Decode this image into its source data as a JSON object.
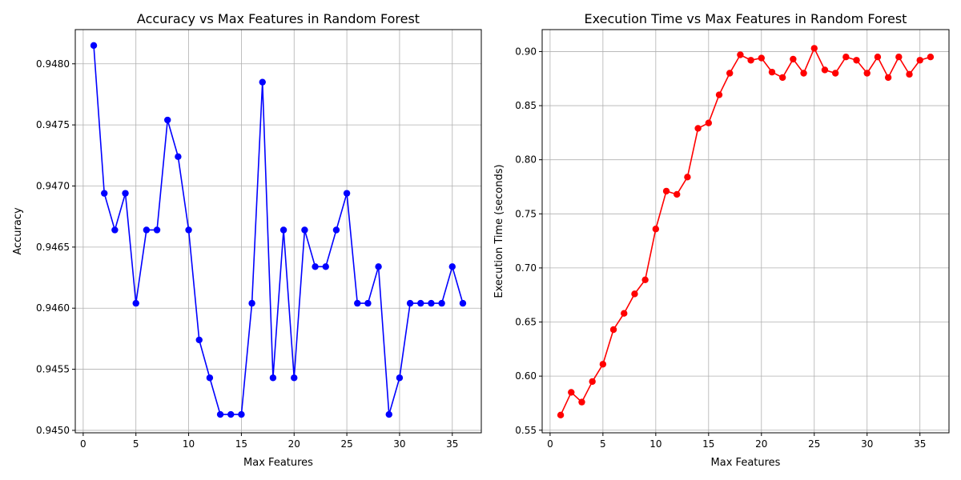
{
  "chart_data": [
    {
      "type": "line",
      "title": "Accuracy vs Max Features in Random Forest",
      "xlabel": "Max Features",
      "ylabel": "Accuracy",
      "xlim": [
        -0.75,
        37.75
      ],
      "ylim": [
        0.94498,
        0.94828
      ],
      "xticks": [
        0,
        5,
        10,
        15,
        20,
        25,
        30,
        35
      ],
      "yticks": [
        0.945,
        0.9455,
        0.946,
        0.9465,
        0.947,
        0.9475,
        0.948
      ],
      "ytick_labels": [
        "0.9450",
        "0.9455",
        "0.9460",
        "0.9465",
        "0.9470",
        "0.9475",
        "0.9480"
      ],
      "xtick_labels": [
        "0",
        "5",
        "10",
        "15",
        "20",
        "25",
        "30",
        "35"
      ],
      "grid": true,
      "color": "#0000ff",
      "marker": "circle",
      "x": [
        1,
        2,
        3,
        4,
        5,
        6,
        7,
        8,
        9,
        10,
        11,
        12,
        13,
        14,
        15,
        16,
        17,
        18,
        19,
        20,
        21,
        22,
        23,
        24,
        25,
        26,
        27,
        28,
        29,
        30,
        31,
        32,
        33,
        34,
        35,
        36
      ],
      "y": [
        0.94815,
        0.94694,
        0.94664,
        0.94694,
        0.94604,
        0.94664,
        0.94664,
        0.94754,
        0.94724,
        0.94664,
        0.94574,
        0.94543,
        0.94513,
        0.94513,
        0.94513,
        0.94604,
        0.94785,
        0.94543,
        0.94664,
        0.94543,
        0.94664,
        0.94634,
        0.94634,
        0.94664,
        0.94694,
        0.94604,
        0.94604,
        0.94634,
        0.94513,
        0.94543,
        0.94604,
        0.94604,
        0.94604,
        0.94604,
        0.94634,
        0.94604
      ]
    },
    {
      "type": "line",
      "title": "Execution Time vs Max Features in Random Forest",
      "xlabel": "Max Features",
      "ylabel": "Execution Time (seconds)",
      "xlim": [
        -0.75,
        37.75
      ],
      "ylim": [
        0.5476,
        0.9203
      ],
      "xticks": [
        0,
        5,
        10,
        15,
        20,
        25,
        30,
        35
      ],
      "yticks": [
        0.55,
        0.6,
        0.65,
        0.7,
        0.75,
        0.8,
        0.85,
        0.9
      ],
      "ytick_labels": [
        "0.55",
        "0.60",
        "0.65",
        "0.70",
        "0.75",
        "0.80",
        "0.85",
        "0.90"
      ],
      "xtick_labels": [
        "0",
        "5",
        "10",
        "15",
        "20",
        "25",
        "30",
        "35"
      ],
      "grid": true,
      "color": "#ff0000",
      "marker": "circle",
      "x": [
        1,
        2,
        3,
        4,
        5,
        6,
        7,
        8,
        9,
        10,
        11,
        12,
        13,
        14,
        15,
        16,
        17,
        18,
        19,
        20,
        21,
        22,
        23,
        24,
        25,
        26,
        27,
        28,
        29,
        30,
        31,
        32,
        33,
        34,
        35,
        36
      ],
      "y": [
        0.564,
        0.585,
        0.576,
        0.595,
        0.611,
        0.643,
        0.658,
        0.676,
        0.689,
        0.736,
        0.771,
        0.768,
        0.784,
        0.829,
        0.834,
        0.86,
        0.88,
        0.897,
        0.892,
        0.894,
        0.881,
        0.876,
        0.893,
        0.88,
        0.903,
        0.883,
        0.88,
        0.895,
        0.892,
        0.88,
        0.895,
        0.876,
        0.895,
        0.879,
        0.892,
        0.895
      ]
    }
  ]
}
